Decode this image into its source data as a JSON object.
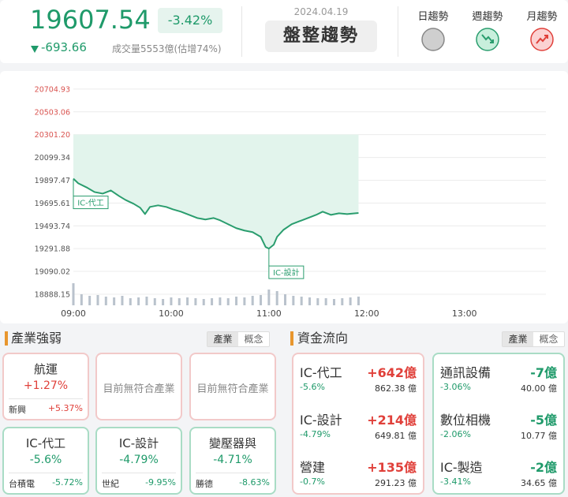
{
  "header": {
    "value": "19607.54",
    "change_pct": "-3.42%",
    "change": "-693.66",
    "volume_text": "成交量5553億(估增74%)",
    "date": "2024.04.19",
    "trend": "盤整趨勢",
    "trends": [
      "日趨勢",
      "週趨勢",
      "月趨勢"
    ]
  },
  "chart_data": {
    "type": "line",
    "color": "#2a9d6e",
    "area_color": "#e2f4ec",
    "fill_to_tick": 2,
    "xlim": [
      0,
      290
    ],
    "xticks": [
      {
        "value": 0,
        "label": "09:00"
      },
      {
        "value": 60,
        "label": "10:00"
      },
      {
        "value": 120,
        "label": "11:00"
      },
      {
        "value": 180,
        "label": "12:00"
      },
      {
        "value": 240,
        "label": "13:00"
      }
    ],
    "ylim": [
      18790,
      20795
    ],
    "yticks": [
      20704.93,
      20503.06,
      {
        "value": 20301.2,
        "label": "20301.20"
      },
      20099.34,
      19897.47,
      19695.61,
      19493.74,
      19291.88,
      19090.02,
      18888.15
    ],
    "ytick_colors": [
      "#d9534f",
      "#d9534f",
      "#d9534f",
      "#555",
      "#555",
      "#555",
      "#555",
      "#555",
      "#555",
      "#555"
    ],
    "grid": true,
    "x": [
      0,
      3,
      8,
      13,
      18,
      23,
      28,
      32,
      37,
      41,
      44,
      47,
      52,
      57,
      61,
      66,
      71,
      76,
      81,
      86,
      90,
      95,
      100,
      105,
      110,
      115,
      118,
      120,
      123,
      125,
      129,
      134,
      139,
      144,
      149,
      153,
      158,
      163,
      168,
      173,
      175
    ],
    "values": [
      19911,
      19870,
      19835,
      19793,
      19779,
      19807,
      19758,
      19723,
      19689,
      19654,
      19598,
      19661,
      19675,
      19661,
      19640,
      19619,
      19591,
      19563,
      19550,
      19563,
      19543,
      19508,
      19473,
      19452,
      19438,
      19396,
      19306,
      19292,
      19327,
      19396,
      19459,
      19508,
      19536,
      19563,
      19591,
      19619,
      19591,
      19605,
      19598,
      19605,
      19607.54
    ],
    "volume": {
      "color": "#b9c2cc",
      "vlim": [
        0,
        100
      ],
      "x": [
        0,
        5,
        10,
        15,
        20,
        25,
        30,
        35,
        40,
        45,
        50,
        55,
        60,
        65,
        70,
        75,
        80,
        85,
        90,
        95,
        100,
        105,
        110,
        115,
        120,
        125,
        130,
        135,
        140,
        145,
        150,
        155,
        160,
        165,
        170,
        175
      ],
      "values": [
        28,
        14,
        12,
        13,
        11,
        10,
        12,
        9,
        10,
        11,
        9,
        8,
        10,
        9,
        10,
        9,
        8,
        9,
        10,
        9,
        11,
        10,
        12,
        13,
        20,
        18,
        14,
        12,
        11,
        10,
        9,
        9,
        8,
        9,
        10,
        11
      ]
    },
    "annotations": [
      {
        "text": "IC-代工",
        "x": 0
      },
      {
        "text": "IC-設計",
        "x": 120
      }
    ]
  },
  "industry": {
    "title": "產業強弱",
    "tabs": [
      "產業",
      "概念"
    ],
    "up": [
      {
        "name": "航運",
        "change": "+1.27%",
        "stock": "新興",
        "stock_change": "+5.37%"
      },
      {
        "empty": "目前無符合產業"
      },
      {
        "empty": "目前無符合產業"
      }
    ],
    "down": [
      {
        "name": "IC-代工",
        "change": "-5.6%",
        "stock": "台積電",
        "stock_change": "-5.72%"
      },
      {
        "name": "IC-設計",
        "change": "-4.79%",
        "stock": "世紀",
        "stock_change": "-9.95%"
      },
      {
        "name": "變壓器與",
        "change": "-4.71%",
        "stock": "勝德",
        "stock_change": "-8.63%"
      }
    ]
  },
  "flow": {
    "title": "資金流向",
    "tabs": [
      "產業",
      "概念"
    ],
    "inflow": [
      {
        "name": "IC-代工",
        "amount": "+642億",
        "change": "-5.6%",
        "volume": "862.38 億"
      },
      {
        "name": "IC-設計",
        "amount": "+214億",
        "change": "-4.79%",
        "volume": "649.81 億"
      },
      {
        "name": "營建",
        "amount": "+135億",
        "change": "-0.7%",
        "volume": "291.23 億"
      }
    ],
    "outflow": [
      {
        "name": "通訊設備",
        "amount": "-7億",
        "change": "-3.06%",
        "volume": "40.00 億"
      },
      {
        "name": "數位相機",
        "amount": "-5億",
        "change": "-2.06%",
        "volume": "10.77 億"
      },
      {
        "name": "IC-製造",
        "amount": "-2億",
        "change": "-3.41%",
        "volume": "34.65 億"
      }
    ]
  }
}
